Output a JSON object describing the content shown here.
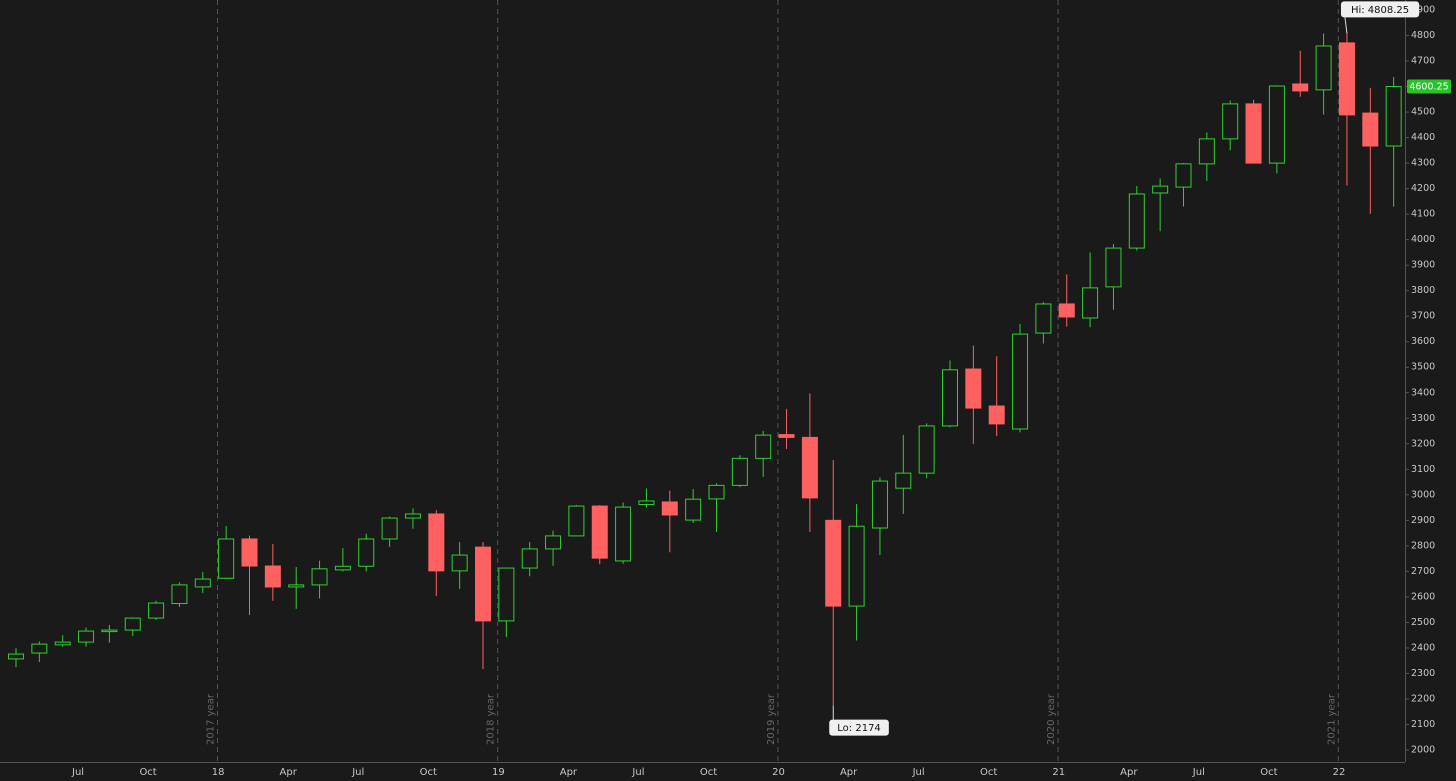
{
  "chart_data": {
    "type": "candlestick",
    "categories": [
      null,
      null,
      null,
      "Jul",
      null,
      null,
      "Oct",
      null,
      null,
      "18",
      null,
      null,
      "Apr",
      null,
      null,
      "Jul",
      null,
      null,
      "Oct",
      null,
      null,
      "19",
      null,
      null,
      "Apr",
      null,
      null,
      "Jul",
      null,
      null,
      "Oct",
      null,
      null,
      "20",
      null,
      null,
      "Apr",
      null,
      null,
      "Jul",
      null,
      null,
      "Oct",
      null,
      null,
      "21",
      null,
      null,
      "Apr",
      null,
      null,
      "Jul",
      null,
      null,
      "Oct",
      null,
      null,
      "22",
      null,
      null
    ],
    "open": [
      2357,
      2380,
      2412,
      2423,
      2464,
      2470,
      2517,
      2574,
      2639,
      2673,
      2827,
      2721,
      2639,
      2647,
      2706,
      2720,
      2827,
      2909,
      2925,
      2702,
      2795,
      2506,
      2713,
      2788,
      2839,
      2956,
      2741,
      2962,
      2972,
      2901,
      2984,
      3037,
      3143,
      3236,
      3225,
      2900,
      2564,
      2870,
      3026,
      3085,
      3270,
      3493,
      3348,
      3258,
      3634,
      3748,
      3693,
      3815,
      3967,
      4183,
      4206,
      4297,
      4395,
      4532,
      4300,
      4610,
      4587,
      4771,
      4496,
      4367
    ],
    "high": [
      2400,
      2425,
      2450,
      2480,
      2490,
      2520,
      2585,
      2657,
      2697,
      2878,
      2840,
      2807,
      2717,
      2742,
      2791,
      2848,
      2915,
      2947,
      2940,
      2815,
      2815,
      2715,
      2815,
      2860,
      2960,
      2960,
      2970,
      3025,
      3017,
      3023,
      3045,
      3155,
      3250,
      3337,
      3397,
      3136,
      2964,
      3068,
      3235,
      3280,
      3527,
      3585,
      3543,
      3670,
      3755,
      3864,
      3950,
      3983,
      4210,
      4240,
      4300,
      4420,
      4545,
      4548,
      4605,
      4740,
      4808,
      4808.25,
      4595,
      4637
    ],
    "low": [
      2325,
      2345,
      2405,
      2405,
      2420,
      2447,
      2510,
      2560,
      2615,
      2670,
      2529,
      2585,
      2553,
      2594,
      2700,
      2700,
      2796,
      2867,
      2603,
      2631,
      2317,
      2443,
      2681,
      2722,
      2838,
      2728,
      2730,
      2950,
      2775,
      2890,
      2855,
      3030,
      3070,
      3180,
      2855,
      2174,
      2429,
      2764,
      2925,
      3065,
      3265,
      3200,
      3230,
      3245,
      3593,
      3659,
      3657,
      3725,
      3958,
      4033,
      4130,
      4230,
      4350,
      4300,
      4260,
      4560,
      4490,
      4212,
      4101,
      4129
    ],
    "close": [
      2376,
      2415,
      2423,
      2466,
      2470,
      2517,
      2576,
      2647,
      2670,
      2827,
      2721,
      2639,
      2647,
      2710,
      2720,
      2827,
      2909,
      2925,
      2702,
      2764,
      2506,
      2713,
      2788,
      2839,
      2956,
      2752,
      2952,
      2976,
      2921,
      2983,
      3037,
      3143,
      3234,
      3225,
      2988,
      2564,
      2877,
      3054,
      3085,
      3270,
      3490,
      3340,
      3278,
      3630,
      3748,
      3697,
      3811,
      3967,
      4179,
      4210,
      4297,
      4395,
      4532,
      4300,
      4602,
      4583,
      4759,
      4489,
      4367,
      4600.25
    ],
    "up_color": "#2fd12f",
    "down_color": "#ff6161",
    "ylim": [
      2000,
      4900
    ],
    "yticks": [
      2000,
      2100,
      2200,
      2300,
      2400,
      2500,
      2600,
      2700,
      2800,
      2900,
      3000,
      3100,
      3200,
      3300,
      3400,
      3500,
      3600,
      3700,
      3800,
      3900,
      4000,
      4100,
      4200,
      4300,
      4400,
      4500,
      4600,
      4700,
      4800,
      4900
    ],
    "year_markers": [
      "2017 year",
      "2018 year",
      "2019 year",
      "2020 year",
      "2021 year"
    ],
    "annotations": [
      {
        "text": "Hi: 4808.25",
        "value": 4808.25
      },
      {
        "text": "Lo: 2174",
        "value": 2174
      }
    ],
    "last_price": 4600.25
  }
}
